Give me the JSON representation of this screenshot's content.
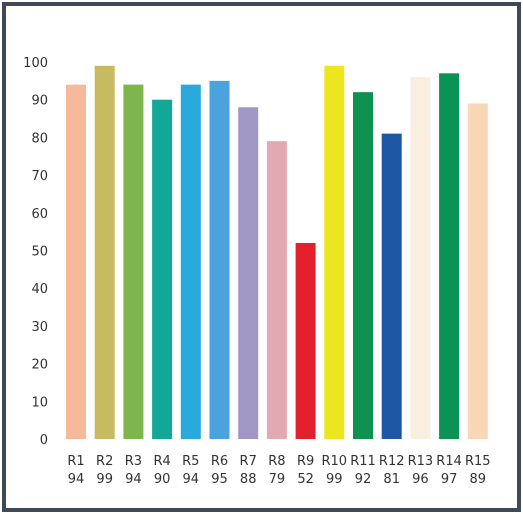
{
  "chart_data": {
    "type": "bar",
    "title": "",
    "xlabel": "",
    "ylabel": "",
    "ylim": [
      0,
      100
    ],
    "yticks": [
      0,
      10,
      20,
      30,
      40,
      50,
      60,
      70,
      80,
      90,
      100
    ],
    "grid": false,
    "legend": "none",
    "categories": [
      "R1",
      "R2",
      "R3",
      "R4",
      "R5",
      "R6",
      "R7",
      "R8",
      "R9",
      "R10",
      "R11",
      "R12",
      "R13",
      "R14",
      "R15"
    ],
    "values": [
      94,
      99,
      94,
      90,
      94,
      95,
      88,
      79,
      52,
      99,
      92,
      81,
      96,
      97,
      89
    ],
    "value_labels": [
      "94",
      "99",
      "94",
      "90",
      "94",
      "95",
      "88",
      "79",
      "52",
      "99",
      "92",
      "81",
      "96",
      "97",
      "89"
    ],
    "colors": [
      "#f7b99b",
      "#c7bb62",
      "#7eb54c",
      "#12a898",
      "#29a9dc",
      "#4aa3dd",
      "#a197c4",
      "#e3a9b3",
      "#e3212d",
      "#ede51f",
      "#0f9151",
      "#1d56a3",
      "#f8efe0",
      "#0b9257",
      "#f9d6b6"
    ]
  }
}
